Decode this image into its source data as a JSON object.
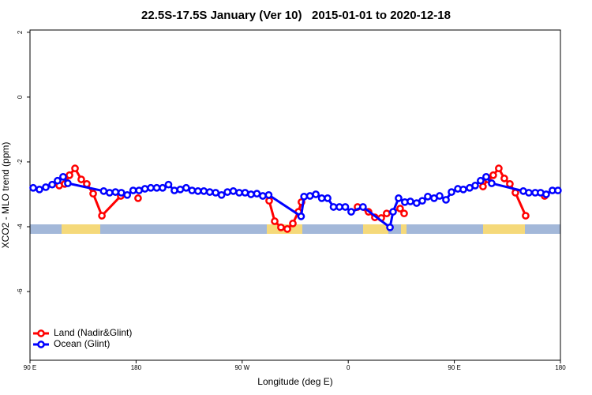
{
  "chart_data": {
    "type": "line",
    "title": "22.5S-17.5S January (Ver 10)   2015-01-01 to 2020-12-18",
    "xlabel": "Longitude (deg E)",
    "ylabel": "XCO2 - MLO trend (ppm)",
    "xlim": [
      90,
      540
    ],
    "ylim": [
      -8.12,
      2.07
    ],
    "xticks": [
      {
        "value": 90,
        "label": "90 E"
      },
      {
        "value": 180,
        "label": "180"
      },
      {
        "value": 270,
        "label": "90 W"
      },
      {
        "value": 360,
        "label": "0"
      },
      {
        "value": 450,
        "label": "90 E"
      },
      {
        "value": 540,
        "label": "180"
      }
    ],
    "yticks": [
      2,
      0,
      -2,
      -4,
      -6
    ],
    "legend": "bottom-left",
    "series": [
      {
        "name": "Land (Nadir&Glint)",
        "color": "#ff0000",
        "x": [
          114.8,
          119.5,
          123.5,
          128.2,
          133.5,
          138.2,
          143.6,
          151,
          167,
          175,
          181.7,
          285,
          292.9,
          297.6,
          302.9,
          308.3,
          313,
          317.7,
          320.3,
          340,
          367.9,
          377.2,
          382.6,
          388,
          392.6,
          404,
          407.4,
          465,
          474.3,
          478.4,
          483,
          487.7,
          492.4,
          497.1,
          501.8,
          510.5,
          518,
          526.6
        ],
        "values": [
          -2.73,
          -2.68,
          -2.41,
          -2.2,
          -2.54,
          -2.68,
          -2.98,
          -3.66,
          -3.05,
          null,
          -3.12,
          null,
          -3.2,
          -3.83,
          -4.02,
          -4.07,
          -3.9,
          -3.54,
          -3.24,
          null,
          -3.39,
          -3.54,
          -3.71,
          -3.73,
          -3.59,
          -3.44,
          -3.59,
          null,
          -2.76,
          -2.54,
          -2.41,
          -2.2,
          -2.51,
          -2.68,
          -2.95,
          -3.66,
          null,
          -3.05
        ]
      },
      {
        "name": "Ocean (Glint)",
        "color": "#0000ff",
        "x": [
          92.7,
          98,
          103.4,
          108.8,
          113.4,
          118.1,
          122.1,
          152.5,
          157.5,
          162.5,
          167.5,
          172.5,
          177.5,
          182.5,
          187.5,
          192.5,
          197.5,
          202.5,
          207.5,
          212.5,
          217.5,
          222.5,
          227.5,
          232.5,
          237.5,
          242.5,
          247.5,
          252.5,
          257.5,
          262.5,
          267.5,
          272.5,
          277.5,
          282.5,
          287.5,
          292.5,
          320,
          322.5,
          327.5,
          332.5,
          337.5,
          342.5,
          347.5,
          352.5,
          357.5,
          362.5,
          372.5,
          395.4,
          398,
          402.7,
          408,
          412.7,
          418,
          422.8,
          427.5,
          432.8,
          437.5,
          442.9,
          447.6,
          453,
          457.6,
          463,
          467.7,
          472.3,
          477,
          481.7,
          508.5,
          513.2,
          518.6,
          523.2,
          527.9,
          533.2,
          537.9
        ],
        "values": [
          -2.8,
          -2.85,
          -2.78,
          -2.7,
          -2.58,
          -2.46,
          -2.66,
          -2.9,
          -2.95,
          -2.93,
          -2.95,
          -3.02,
          -2.88,
          -2.88,
          -2.83,
          -2.8,
          -2.8,
          -2.8,
          -2.7,
          -2.88,
          -2.85,
          -2.8,
          -2.88,
          -2.9,
          -2.9,
          -2.93,
          -2.95,
          -3.02,
          -2.93,
          -2.9,
          -2.95,
          -2.95,
          -3.0,
          -2.98,
          -3.05,
          -3.02,
          -3.68,
          -3.07,
          -3.05,
          -3.0,
          -3.12,
          -3.12,
          -3.39,
          -3.39,
          -3.39,
          -3.54,
          -3.39,
          -4.02,
          -3.54,
          -3.12,
          -3.24,
          -3.22,
          -3.27,
          -3.2,
          -3.07,
          -3.12,
          -3.05,
          -3.17,
          -2.93,
          -2.83,
          -2.85,
          -2.8,
          -2.73,
          -2.58,
          -2.46,
          -2.66,
          -2.9,
          -2.95,
          -2.95,
          -2.95,
          -3.0,
          -2.88,
          -2.88
        ]
      }
    ]
  }
}
